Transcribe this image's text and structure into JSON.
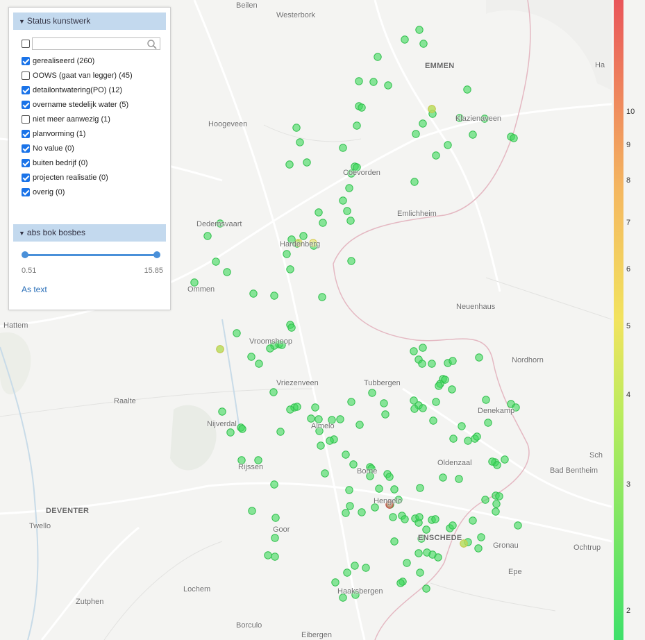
{
  "panel": {
    "status_title": "Status kunstwerk",
    "search_placeholder": "",
    "filters": [
      {
        "label": "gerealiseerd (260)",
        "checked": true
      },
      {
        "label": "OOWS (gaat van legger) (45)",
        "checked": false
      },
      {
        "label": "detailontwatering(PO) (12)",
        "checked": true
      },
      {
        "label": "overname stedelijk water (5)",
        "checked": true
      },
      {
        "label": "niet meer aanwezig (1)",
        "checked": false
      },
      {
        "label": "planvorming (1)",
        "checked": true
      },
      {
        "label": "No value (0)",
        "checked": true
      },
      {
        "label": "buiten bedrijf (0)",
        "checked": true
      },
      {
        "label": "projecten realisatie (0)",
        "checked": true
      },
      {
        "label": "overig (0)",
        "checked": true
      }
    ],
    "slider_title": "abs bok bosbes",
    "slider_min": "0.51",
    "slider_max": "15.85",
    "as_text": "As text"
  },
  "legend": {
    "ticks": [
      "10",
      "9",
      "8",
      "7",
      "6",
      "5",
      "4",
      "3",
      "2"
    ],
    "colors": [
      "#e9555a",
      "#f4b860",
      "#f2e35e",
      "#b9ec5e",
      "#3ee06a"
    ]
  },
  "map": {
    "places": [
      {
        "name": "Beilen",
        "big": false
      },
      {
        "name": "Westerbork",
        "big": false
      },
      {
        "name": "EMMEN",
        "big": true
      },
      {
        "name": "Hoogeveen",
        "big": false
      },
      {
        "name": "Klazienaveen",
        "big": false
      },
      {
        "name": "Coevorden",
        "big": false
      },
      {
        "name": "Emlichheim",
        "big": false
      },
      {
        "name": "Dedemsvaart",
        "big": false
      },
      {
        "name": "Hardenberg",
        "big": false
      },
      {
        "name": "Ommen",
        "big": false
      },
      {
        "name": "Neuenhaus",
        "big": false
      },
      {
        "name": "Hattem",
        "big": false
      },
      {
        "name": "Vroomshoop",
        "big": false
      },
      {
        "name": "Nordhorn",
        "big": false
      },
      {
        "name": "Vriezenveen",
        "big": false
      },
      {
        "name": "Tubbergen",
        "big": false
      },
      {
        "name": "Raalte",
        "big": false
      },
      {
        "name": "Denekamp",
        "big": false
      },
      {
        "name": "Nijverdal",
        "big": false
      },
      {
        "name": "Almelo",
        "big": false
      },
      {
        "name": "Sch",
        "big": false
      },
      {
        "name": "Oldenzaal",
        "big": false
      },
      {
        "name": "Rijssen",
        "big": false
      },
      {
        "name": "Bad Bentheim",
        "big": false
      },
      {
        "name": "Borne",
        "big": false
      },
      {
        "name": "Hengelo",
        "big": false
      },
      {
        "name": "DEVENTER",
        "big": true
      },
      {
        "name": "Twello",
        "big": false
      },
      {
        "name": "Goor",
        "big": false
      },
      {
        "name": "ENSCHEDE",
        "big": true
      },
      {
        "name": "Gronau",
        "big": false
      },
      {
        "name": "Ochtrup",
        "big": false
      },
      {
        "name": "Epe",
        "big": false
      },
      {
        "name": "Haaksbergen",
        "big": false
      },
      {
        "name": "Lochem",
        "big": false
      },
      {
        "name": "Zutphen",
        "big": false
      },
      {
        "name": "Borculo",
        "big": false
      },
      {
        "name": "Eibergen",
        "big": false
      },
      {
        "name": "Ha",
        "big": false
      }
    ]
  }
}
